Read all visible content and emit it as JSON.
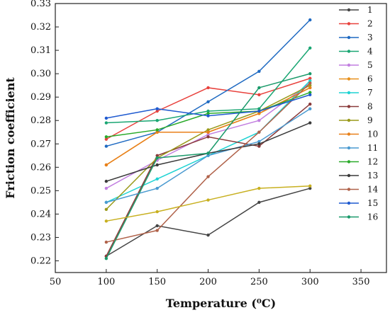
{
  "chart_data": {
    "type": "line",
    "xlabel": "Temperature (⁰C)",
    "ylabel": "Friction coefficient",
    "xlim": [
      50,
      375
    ],
    "ylim": [
      0.215,
      0.33
    ],
    "xticks": [
      50,
      100,
      150,
      200,
      250,
      300,
      350
    ],
    "yticks": [
      "0.22",
      "0.23",
      "0.24",
      "0.25",
      "0.26",
      "0.27",
      "0.28",
      "0.29",
      "0.30",
      "0.31",
      "0.32",
      "0.33"
    ],
    "x": [
      100,
      150,
      200,
      250,
      300
    ],
    "grid": false,
    "legend_position": "right",
    "series": [
      {
        "name": "1",
        "color": "#444444",
        "values": [
          0.222,
          0.235,
          0.231,
          0.245,
          0.251
        ]
      },
      {
        "name": "2",
        "color": "#e8413c",
        "values": [
          0.272,
          0.284,
          0.294,
          0.291,
          0.298
        ]
      },
      {
        "name": "3",
        "color": "#1f6ac2",
        "values": [
          0.269,
          0.275,
          0.288,
          0.301,
          0.323
        ]
      },
      {
        "name": "4",
        "color": "#1aa673",
        "values": [
          0.279,
          0.28,
          0.284,
          0.285,
          0.311
        ]
      },
      {
        "name": "5",
        "color": "#c27fe0",
        "values": [
          0.251,
          0.263,
          0.274,
          0.28,
          0.296
        ]
      },
      {
        "name": "6",
        "color": "#e8901a",
        "values": [
          0.261,
          0.275,
          0.275,
          0.283,
          0.294
        ]
      },
      {
        "name": "7",
        "color": "#1fd3d3",
        "values": [
          0.245,
          0.255,
          0.265,
          0.275,
          0.297
        ]
      },
      {
        "name": "8",
        "color": "#8a3a3a",
        "values": [
          0.222,
          0.265,
          0.273,
          0.269,
          0.287
        ]
      },
      {
        "name": "9",
        "color": "#9a9a1a",
        "values": [
          0.242,
          0.264,
          0.276,
          0.284,
          0.295
        ]
      },
      {
        "name": "10",
        "color": "#e8801a",
        "values": [
          0.261,
          0.275,
          0.275,
          0.283,
          0.294
        ]
      },
      {
        "name": "11",
        "color": "#4a9ad0",
        "values": [
          0.245,
          0.251,
          0.265,
          0.271,
          0.285
        ]
      },
      {
        "name": "12",
        "color": "#2aaa2a",
        "values": [
          0.273,
          0.276,
          0.283,
          0.284,
          0.292
        ]
      },
      {
        "name": "13",
        "color": "#3a3a3a",
        "values": [
          0.254,
          0.261,
          0.266,
          0.27,
          0.279
        ]
      },
      {
        "name": "14",
        "color": "#b0624a",
        "values": [
          0.228,
          0.233,
          0.256,
          0.275,
          0.296
        ]
      },
      {
        "name": "15",
        "color": "#1f5ad0",
        "values": [
          0.281,
          0.285,
          0.282,
          0.284,
          0.291
        ]
      },
      {
        "name": "16",
        "color": "#1a9a6a",
        "values": [
          0.221,
          0.264,
          0.266,
          0.294,
          0.3
        ]
      },
      {
        "name": "",
        "color": "#c8b020",
        "values": [
          0.237,
          0.241,
          0.246,
          0.251,
          0.252
        ]
      }
    ]
  }
}
